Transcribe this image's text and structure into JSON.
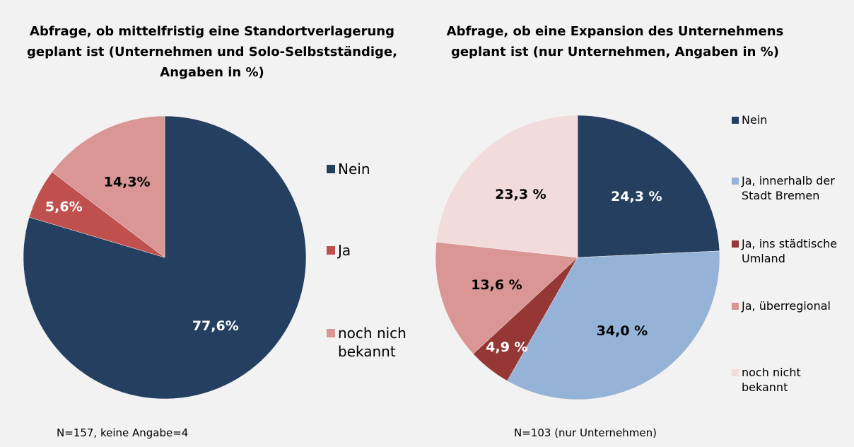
{
  "chart_data": [
    {
      "type": "pie",
      "title": [
        "Abfrage, ob mittelfristig eine Standortverlagerung",
        "geplant ist (Unternehmen und Solo-Selbstständige,",
        "Angaben in %)"
      ],
      "categories": [
        "Nein",
        "Ja",
        "noch nich bekannt"
      ],
      "values": [
        77.6,
        5.6,
        14.3
      ],
      "value_labels": [
        "77,6%",
        "5,6%",
        "14,3%"
      ],
      "colors": [
        "#243f60",
        "#c0504d",
        "#d99694"
      ],
      "legend": "right",
      "note": "N=157, keine Angabe=4"
    },
    {
      "type": "pie",
      "title": [
        "Abfrage, ob eine Expansion des Unternehmens",
        "geplant ist (nur Unternehmen, Angaben in %)"
      ],
      "categories": [
        "Nein",
        "Ja, innerhalb der Stadt Bremen",
        "Ja, ins städtische Umland",
        "Ja, überregional",
        "noch nicht bekannt"
      ],
      "values": [
        24.3,
        34.0,
        4.9,
        13.6,
        23.3
      ],
      "value_labels": [
        "24,3 %",
        "34,0 %",
        "4,9 %",
        "13,6 %",
        "23,3 %"
      ],
      "colors": [
        "#243f60",
        "#95b3d7",
        "#953735",
        "#d99694",
        "#f2dcdb"
      ],
      "legend": "right",
      "note": "N=103 (nur Unternehmen)"
    }
  ]
}
